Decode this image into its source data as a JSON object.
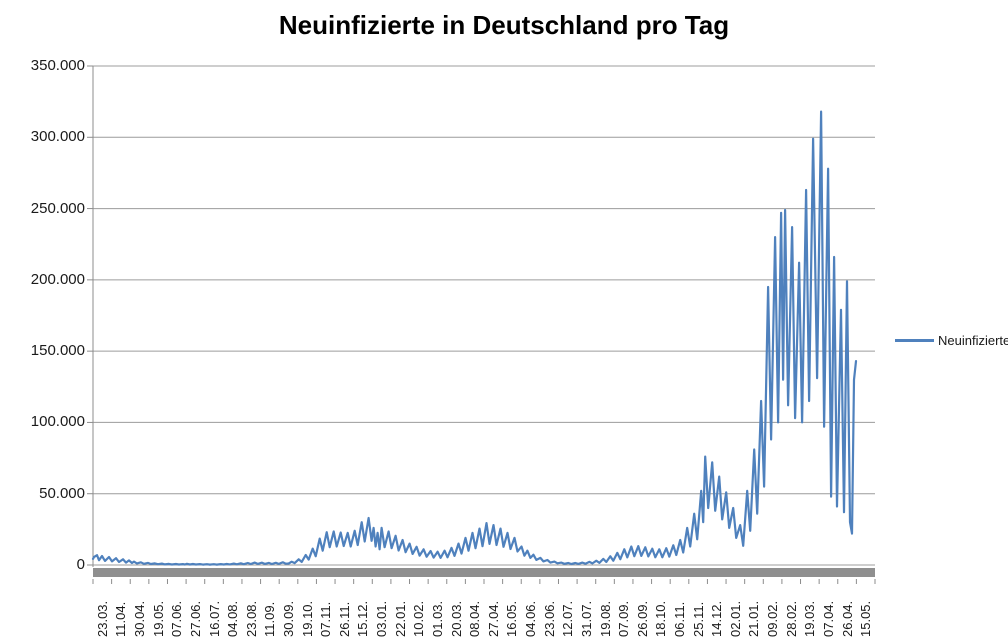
{
  "title": "Neuinfizierte in Deutschland pro Tag",
  "colors": {
    "series_line": "#4F81BD",
    "gridline": "#9c9c9c",
    "axis_line": "#8c8c8c",
    "axis_band": "#8f8f8f",
    "text": "#1a1a1a"
  },
  "legend": {
    "label": "Neuinfizierte"
  },
  "chart_data": {
    "type": "line",
    "title": "Neuinfizierte in Deutschland pro Tag",
    "xlabel": "",
    "ylabel": "",
    "ylim": [
      0,
      350000
    ],
    "y_ticks": [
      0,
      50000,
      100000,
      150000,
      200000,
      250000,
      300000,
      350000
    ],
    "y_tick_labels": [
      "0",
      "50.000",
      "100.000",
      "150.000",
      "200.000",
      "250.000",
      "300.000",
      "350.000"
    ],
    "x_tick_labels": [
      "23.03.",
      "11.04.",
      "30.04.",
      "19.05.",
      "07.06.",
      "27.06.",
      "16.07.",
      "04.08.",
      "23.08.",
      "11.09.",
      "30.09.",
      "19.10.",
      "07.11.",
      "26.11.",
      "15.12.",
      "03.01.",
      "22.01.",
      "10.02.",
      "01.03.",
      "20.03.",
      "08.04.",
      "27.04.",
      "16.05.",
      "04.06.",
      "23.06.",
      "12.07.",
      "31.07.",
      "19.08.",
      "07.09.",
      "26.09.",
      "18.10.",
      "06.11.",
      "25.11.",
      "14.12.",
      "02.01.",
      "21.01.",
      "09.02.",
      "28.02.",
      "19.03.",
      "07.04.",
      "26.04.",
      "15.05."
    ],
    "x_range_days": [
      0,
      783
    ],
    "grid": "horizontal",
    "legend_position": "right",
    "series": [
      {
        "name": "Neuinfizierte",
        "color": "#4F81BD",
        "points": [
          [
            0,
            4300
          ],
          [
            1,
            5600
          ],
          [
            4,
            6900
          ],
          [
            6,
            3400
          ],
          [
            9,
            6300
          ],
          [
            12,
            2900
          ],
          [
            16,
            5600
          ],
          [
            19,
            2500
          ],
          [
            23,
            4800
          ],
          [
            26,
            2100
          ],
          [
            30,
            4000
          ],
          [
            33,
            1700
          ],
          [
            36,
            3200
          ],
          [
            39,
            1400
          ],
          [
            41,
            2400
          ],
          [
            44,
            1100
          ],
          [
            48,
            1900
          ],
          [
            51,
            850
          ],
          [
            55,
            1500
          ],
          [
            58,
            700
          ],
          [
            62,
            1150
          ],
          [
            65,
            550
          ],
          [
            69,
            950
          ],
          [
            72,
            430
          ],
          [
            76,
            800
          ],
          [
            79,
            380
          ],
          [
            83,
            700
          ],
          [
            86,
            340
          ],
          [
            90,
            600
          ],
          [
            92,
            320
          ],
          [
            94,
            820
          ],
          [
            97,
            380
          ],
          [
            100,
            700
          ],
          [
            103,
            330
          ],
          [
            107,
            600
          ],
          [
            110,
            300
          ],
          [
            114,
            560
          ],
          [
            117,
            290
          ],
          [
            121,
            580
          ],
          [
            124,
            310
          ],
          [
            128,
            650
          ],
          [
            131,
            360
          ],
          [
            134,
            800
          ],
          [
            137,
            420
          ],
          [
            141,
            1000
          ],
          [
            144,
            500
          ],
          [
            148,
            1200
          ],
          [
            151,
            580
          ],
          [
            155,
            1400
          ],
          [
            158,
            680
          ],
          [
            162,
            1700
          ],
          [
            165,
            800
          ],
          [
            169,
            1600
          ],
          [
            172,
            760
          ],
          [
            176,
            1500
          ],
          [
            179,
            720
          ],
          [
            183,
            1550
          ],
          [
            186,
            760
          ],
          [
            190,
            1900
          ],
          [
            193,
            900
          ],
          [
            196,
            1050
          ],
          [
            199,
            2300
          ],
          [
            202,
            1300
          ],
          [
            206,
            4000
          ],
          [
            209,
            2200
          ],
          [
            213,
            7000
          ],
          [
            216,
            3800
          ],
          [
            220,
            11500
          ],
          [
            223,
            6200
          ],
          [
            227,
            18500
          ],
          [
            230,
            10000
          ],
          [
            234,
            23000
          ],
          [
            237,
            12500
          ],
          [
            241,
            23500
          ],
          [
            244,
            13000
          ],
          [
            248,
            22800
          ],
          [
            251,
            13300
          ],
          [
            255,
            22500
          ],
          [
            258,
            13000
          ],
          [
            262,
            24000
          ],
          [
            265,
            14000
          ],
          [
            269,
            30000
          ],
          [
            272,
            16500
          ],
          [
            276,
            33000
          ],
          [
            279,
            17000
          ],
          [
            281,
            26000
          ],
          [
            283,
            13000
          ],
          [
            285,
            22500
          ],
          [
            287,
            11000
          ],
          [
            289,
            26000
          ],
          [
            292,
            12500
          ],
          [
            296,
            23500
          ],
          [
            299,
            11800
          ],
          [
            303,
            20500
          ],
          [
            306,
            10200
          ],
          [
            310,
            17500
          ],
          [
            313,
            9000
          ],
          [
            317,
            15000
          ],
          [
            320,
            7800
          ],
          [
            324,
            12800
          ],
          [
            327,
            6600
          ],
          [
            331,
            11000
          ],
          [
            334,
            5800
          ],
          [
            338,
            9800
          ],
          [
            341,
            5200
          ],
          [
            345,
            9300
          ],
          [
            348,
            5000
          ],
          [
            352,
            10000
          ],
          [
            355,
            5400
          ],
          [
            359,
            12000
          ],
          [
            362,
            6400
          ],
          [
            366,
            15000
          ],
          [
            369,
            8000
          ],
          [
            373,
            19000
          ],
          [
            376,
            10000
          ],
          [
            380,
            22500
          ],
          [
            383,
            11800
          ],
          [
            387,
            25500
          ],
          [
            390,
            13200
          ],
          [
            394,
            29400
          ],
          [
            397,
            14800
          ],
          [
            401,
            28000
          ],
          [
            404,
            14000
          ],
          [
            408,
            25500
          ],
          [
            411,
            12800
          ],
          [
            415,
            22500
          ],
          [
            418,
            11200
          ],
          [
            422,
            19000
          ],
          [
            425,
            9500
          ],
          [
            429,
            13000
          ],
          [
            432,
            6500
          ],
          [
            435,
            10000
          ],
          [
            438,
            5000
          ],
          [
            441,
            7200
          ],
          [
            444,
            3600
          ],
          [
            448,
            5000
          ],
          [
            451,
            2500
          ],
          [
            455,
            3500
          ],
          [
            458,
            1700
          ],
          [
            462,
            2400
          ],
          [
            465,
            1200
          ],
          [
            469,
            1700
          ],
          [
            472,
            850
          ],
          [
            476,
            1400
          ],
          [
            479,
            700
          ],
          [
            483,
            1400
          ],
          [
            486,
            750
          ],
          [
            490,
            1700
          ],
          [
            493,
            900
          ],
          [
            497,
            2200
          ],
          [
            500,
            1100
          ],
          [
            504,
            3000
          ],
          [
            507,
            1500
          ],
          [
            511,
            4300
          ],
          [
            514,
            2100
          ],
          [
            518,
            6100
          ],
          [
            521,
            3000
          ],
          [
            525,
            8500
          ],
          [
            528,
            4100
          ],
          [
            532,
            11000
          ],
          [
            535,
            5300
          ],
          [
            539,
            13000
          ],
          [
            542,
            6200
          ],
          [
            546,
            13200
          ],
          [
            549,
            6400
          ],
          [
            553,
            12400
          ],
          [
            556,
            6000
          ],
          [
            560,
            11400
          ],
          [
            563,
            5500
          ],
          [
            567,
            11000
          ],
          [
            570,
            5400
          ],
          [
            574,
            11800
          ],
          [
            577,
            5900
          ],
          [
            581,
            13800
          ],
          [
            584,
            7000
          ],
          [
            588,
            17500
          ],
          [
            591,
            8800
          ],
          [
            595,
            26000
          ],
          [
            598,
            13000
          ],
          [
            602,
            36000
          ],
          [
            605,
            18000
          ],
          [
            609,
            52000
          ],
          [
            611,
            30000
          ],
          [
            613,
            76000
          ],
          [
            616,
            40000
          ],
          [
            620,
            72000
          ],
          [
            623,
            38000
          ],
          [
            627,
            62000
          ],
          [
            630,
            32000
          ],
          [
            634,
            51000
          ],
          [
            637,
            26000
          ],
          [
            641,
            40000
          ],
          [
            644,
            19000
          ],
          [
            648,
            28000
          ],
          [
            651,
            13500
          ],
          [
            655,
            52000
          ],
          [
            658,
            24000
          ],
          [
            662,
            81000
          ],
          [
            665,
            36000
          ],
          [
            669,
            115000
          ],
          [
            672,
            55000
          ],
          [
            676,
            195000
          ],
          [
            679,
            88000
          ],
          [
            683,
            230000
          ],
          [
            686,
            100000
          ],
          [
            689,
            247000
          ],
          [
            691,
            130000
          ],
          [
            693,
            249000
          ],
          [
            696,
            112000
          ],
          [
            700,
            237000
          ],
          [
            703,
            103000
          ],
          [
            707,
            212000
          ],
          [
            710,
            100000
          ],
          [
            714,
            263000
          ],
          [
            717,
            115000
          ],
          [
            721,
            299000
          ],
          [
            725,
            131000
          ],
          [
            729,
            318000
          ],
          [
            732,
            97000
          ],
          [
            736,
            278000
          ],
          [
            739,
            48000
          ],
          [
            742,
            216000
          ],
          [
            745,
            41000
          ],
          [
            749,
            179000
          ],
          [
            752,
            37000
          ],
          [
            755,
            199000
          ],
          [
            758,
            30000
          ],
          [
            760,
            22000
          ],
          [
            762,
            130000
          ],
          [
            764,
            143000
          ]
        ]
      }
    ]
  }
}
